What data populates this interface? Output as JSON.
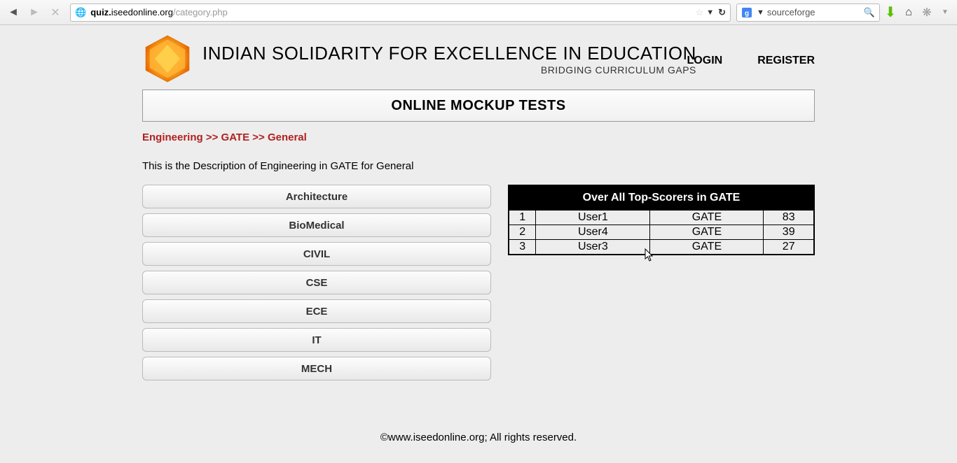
{
  "toolbar": {
    "url_sub": "quiz.",
    "url_domain": "iseedonline.org",
    "url_path": "/category.php",
    "search_value": "sourceforge"
  },
  "header": {
    "title": "INDIAN SOLIDARITY FOR EXCELLENCE IN EDUCATION",
    "tagline": "BRIDGING CURRICULUM GAPS",
    "login": "LOGIN",
    "register": "REGISTER"
  },
  "banner": "ONLINE MOCKUP TESTS",
  "breadcrumb": "Engineering >> GATE >> General",
  "description": "This is the Description of Engineering in GATE for General",
  "categories": [
    "Architecture",
    "BioMedical",
    "CIVIL",
    "CSE",
    "ECE",
    "IT",
    "MECH"
  ],
  "scorers": {
    "title": "Over All Top-Scorers in GATE",
    "rows": [
      {
        "rank": "1",
        "user": "User1",
        "exam": "GATE",
        "score": "83"
      },
      {
        "rank": "2",
        "user": "User4",
        "exam": "GATE",
        "score": "39"
      },
      {
        "rank": "3",
        "user": "User3",
        "exam": "GATE",
        "score": "27"
      }
    ]
  },
  "footer": "©www.iseedonline.org; All rights reserved."
}
